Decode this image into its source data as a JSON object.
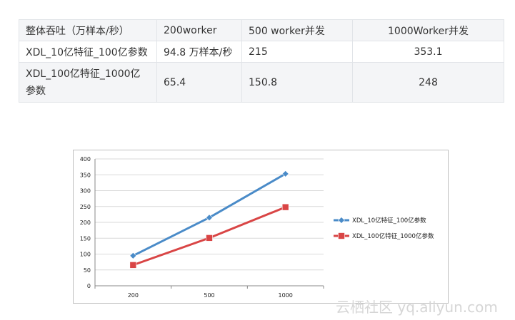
{
  "table": {
    "rows": [
      [
        "整体吞吐（万样本/秒）",
        "200worker",
        "500 worker并发",
        "1000Worker并发"
      ],
      [
        "XDL_10亿特征_100亿参数",
        "94.8 万样本/秒",
        "215",
        "353.1"
      ],
      [
        "XDL_100亿特征_1000亿参数",
        "65.4",
        "150.8",
        "248"
      ]
    ]
  },
  "chart_data": {
    "type": "line",
    "categories": [
      "200",
      "500",
      "1000"
    ],
    "series": [
      {
        "name": "XDL_10亿特征_100亿参数",
        "values": [
          94.8,
          215,
          353.1
        ],
        "color": "#4a8bc8",
        "marker": "diamond"
      },
      {
        "name": "XDL_100亿特征_1000亿参数",
        "values": [
          65.4,
          150.8,
          248
        ],
        "color": "#d94545",
        "marker": "square"
      }
    ],
    "ylim": [
      0,
      400
    ],
    "yticks": [
      0,
      50,
      100,
      150,
      200,
      250,
      300,
      350,
      400
    ],
    "grid": true,
    "legend": "right"
  },
  "watermark": "云栖社区 yq.aliyun.com"
}
